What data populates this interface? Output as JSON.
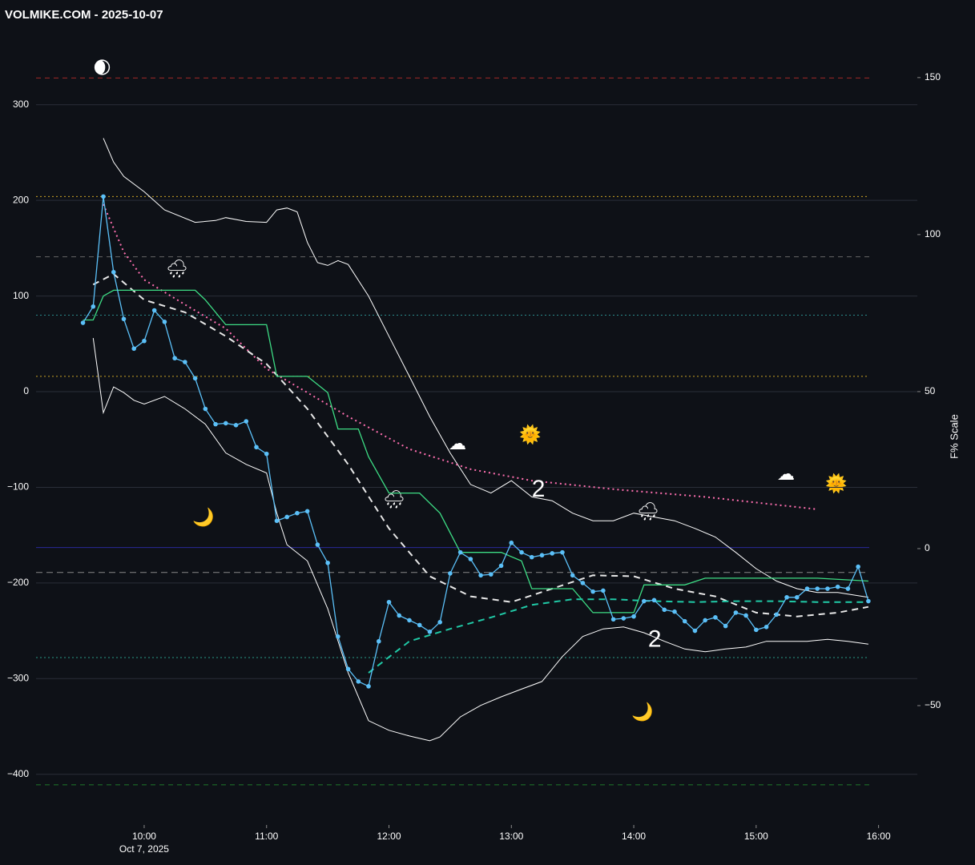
{
  "chart_data": {
    "type": "line",
    "title": "VOLMIKE.COM  - 2025-10-07",
    "date_label": "Oct 7, 2025",
    "y2_label": "F% Scale",
    "xlim": [
      "09:07",
      "16:19"
    ],
    "xticks": [
      "10:00",
      "11:00",
      "12:00",
      "13:00",
      "14:00",
      "15:00",
      "16:00"
    ],
    "ylim": [
      -453,
      376
    ],
    "yticks": [
      {
        "value": -400,
        "label": "−400"
      },
      {
        "value": -300,
        "label": "−300"
      },
      {
        "value": -200,
        "label": "−200"
      },
      {
        "value": -100,
        "label": "−100"
      },
      0,
      100,
      200,
      300
    ],
    "y2lim": [
      -88,
      164.5
    ],
    "y2ticks": [
      {
        "value": -50,
        "label": "−50"
      },
      0,
      50,
      100,
      150
    ],
    "grid": true,
    "hlines": [
      {
        "y": 328,
        "color": "#a02828",
        "dash": "6,5"
      },
      {
        "y": 141,
        "color": "#666666",
        "dash": "6,5"
      },
      {
        "y": 80,
        "color": "#2a8a8a",
        "dash": "2,3"
      },
      {
        "y": 204,
        "color": "#c9a227",
        "dash": "2,3"
      },
      {
        "y": 16,
        "color": "#c9a227",
        "dash": "2,3"
      },
      {
        "y": -163,
        "color": "#2a2a9a",
        "dash": "none"
      },
      {
        "y": -189,
        "color": "#888888",
        "dash": "8,5"
      },
      {
        "y": -278,
        "color": "#2a9a8a",
        "dash": "2,3"
      },
      {
        "y": -411,
        "color": "#1f7a2a",
        "dash": "6,5"
      }
    ],
    "series": [
      {
        "color": "#ffffff",
        "width": 1,
        "dash": "none",
        "markers": false,
        "x": [
          "09:40",
          "09:45",
          "09:50",
          "10:00",
          "10:10",
          "10:25",
          "10:35",
          "10:40",
          "10:50",
          "11:00",
          "11:05",
          "11:10",
          "11:15",
          "11:20",
          "11:25",
          "11:30",
          "11:35",
          "11:40",
          "11:50",
          "12:00",
          "12:10",
          "12:20",
          "12:30",
          "12:40",
          "12:50",
          "13:00",
          "13:10",
          "13:20",
          "13:30",
          "13:40",
          "13:50",
          "14:00",
          "14:10",
          "14:20",
          "14:30",
          "14:40",
          "14:50",
          "15:00",
          "15:10",
          "15:20",
          "15:30",
          "15:40",
          "15:55"
        ],
        "values": [
          265,
          240,
          225,
          209,
          190,
          177,
          179,
          182,
          178,
          177,
          190,
          192,
          188,
          156,
          135,
          132,
          137,
          133,
          100,
          58,
          16,
          -26,
          -64,
          -97,
          -106,
          -93,
          -110,
          -114,
          -127,
          -135,
          -135,
          -127,
          -131,
          -135,
          -143,
          -152,
          -168,
          -185,
          -198,
          -206,
          -210,
          -210,
          -215
        ]
      },
      {
        "color": "#ffffff",
        "width": 1,
        "dash": "none",
        "markers": false,
        "x": [
          "09:35",
          "09:40",
          "09:45",
          "09:50",
          "09:55",
          "10:00",
          "10:10",
          "10:20",
          "10:30",
          "10:40",
          "10:50",
          "11:00",
          "11:05",
          "11:10",
          "11:20",
          "11:30",
          "11:40",
          "11:50",
          "12:00",
          "12:10",
          "12:20",
          "12:25",
          "12:35",
          "12:45",
          "12:55",
          "13:05",
          "13:15",
          "13:25",
          "13:35",
          "13:45",
          "13:55",
          "14:05",
          "14:15",
          "14:25",
          "14:35",
          "14:45",
          "14:55",
          "15:05",
          "15:15",
          "15:25",
          "15:35",
          "15:45",
          "15:55"
        ],
        "values": [
          56,
          -22,
          5,
          -1,
          -9,
          -13,
          -5,
          -18,
          -34,
          -64,
          -76,
          -85,
          -127,
          -160,
          -177,
          -227,
          -294,
          -344,
          -354,
          -360,
          -365,
          -361,
          -340,
          -328,
          -319,
          -311,
          -303,
          -277,
          -256,
          -248,
          -246,
          -252,
          -261,
          -269,
          -272,
          -269,
          -267,
          -261,
          -261,
          -261,
          -259,
          -261,
          -264
        ]
      },
      {
        "color": "#ff6fb0",
        "width": 2,
        "dash": "2,4",
        "markers": false,
        "x": [
          "09:40",
          "09:50",
          "10:00",
          "10:20",
          "10:40",
          "11:00",
          "11:20",
          "11:40",
          "12:10",
          "12:40",
          "13:10",
          "13:50",
          "14:35",
          "15:30"
        ],
        "values": [
          196,
          146,
          117,
          91,
          66,
          24,
          -1,
          -26,
          -60,
          -81,
          -93,
          -102,
          -110,
          -123
        ]
      },
      {
        "color": "#e8e8e8",
        "width": 2,
        "dash": "8,6",
        "markers": false,
        "x": [
          "09:35",
          "09:45",
          "10:00",
          "10:20",
          "10:40",
          "11:00",
          "11:20",
          "11:40",
          "12:00",
          "12:20",
          "12:40",
          "13:00",
          "13:20",
          "13:40",
          "14:00",
          "14:20",
          "14:40",
          "15:00",
          "15:20",
          "15:40",
          "15:55"
        ],
        "values": [
          112,
          123,
          96,
          83,
          58,
          29,
          -18,
          -76,
          -143,
          -193,
          -214,
          -220,
          -206,
          -192,
          -193,
          -206,
          -214,
          -231,
          -235,
          -231,
          -225
        ]
      },
      {
        "color": "#3ddc84",
        "width": 1.3,
        "dash": "none",
        "markers": false,
        "x": [
          "09:30",
          "09:35",
          "09:40",
          "09:45",
          "10:00",
          "10:25",
          "10:30",
          "10:40",
          "11:00",
          "11:05",
          "11:20",
          "11:30",
          "11:35",
          "11:45",
          "11:50",
          "12:00",
          "12:15",
          "12:25",
          "12:35",
          "12:55",
          "13:05",
          "13:10",
          "13:30",
          "13:40",
          "14:00",
          "14:05",
          "14:25",
          "14:35",
          "15:30",
          "15:55"
        ],
        "values": [
          75,
          75,
          100,
          106,
          106,
          106,
          96,
          70,
          70,
          16,
          16,
          -1,
          -39,
          -39,
          -68,
          -106,
          -106,
          -127,
          -168,
          -168,
          -177,
          -206,
          -206,
          -231,
          -231,
          -202,
          -202,
          -195,
          -195,
          -198
        ]
      },
      {
        "color": "#20c9a6",
        "width": 2,
        "dash": "8,6",
        "markers": false,
        "x": [
          "11:50",
          "12:10",
          "12:30",
          "12:50",
          "13:10",
          "13:30",
          "13:50",
          "14:10",
          "14:30",
          "14:50",
          "15:10",
          "15:30",
          "15:55"
        ],
        "values": [
          -294,
          -261,
          -248,
          -236,
          -223,
          -217,
          -217,
          -219,
          -220,
          -219,
          -219,
          -220,
          -220
        ]
      },
      {
        "color": "#5bc0f8",
        "width": 1.3,
        "dash": "none",
        "markers": true,
        "x": [
          "09:30",
          "09:35",
          "09:40",
          "09:45",
          "09:50",
          "09:55",
          "10:00",
          "10:05",
          "10:10",
          "10:15",
          "10:20",
          "10:25",
          "10:30",
          "10:35",
          "10:40",
          "10:45",
          "10:50",
          "10:55",
          "11:00",
          "11:05",
          "11:10",
          "11:15",
          "11:20",
          "11:25",
          "11:30",
          "11:35",
          "11:40",
          "11:45",
          "11:50",
          "11:55",
          "12:00",
          "12:05",
          "12:10",
          "12:15",
          "12:20",
          "12:25",
          "12:30",
          "12:35",
          "12:40",
          "12:45",
          "12:50",
          "12:55",
          "13:00",
          "13:05",
          "13:10",
          "13:15",
          "13:20",
          "13:25",
          "13:30",
          "13:35",
          "13:40",
          "13:45",
          "13:50",
          "13:55",
          "14:00",
          "14:05",
          "14:10",
          "14:15",
          "14:20",
          "14:25",
          "14:30",
          "14:35",
          "14:40",
          "14:45",
          "14:50",
          "14:55",
          "15:00",
          "15:05",
          "15:10",
          "15:15",
          "15:20",
          "15:25",
          "15:30",
          "15:35",
          "15:40",
          "15:45",
          "15:50",
          "15:55"
        ],
        "values": [
          72,
          89,
          204,
          125,
          76,
          45,
          53,
          85,
          73,
          35,
          31,
          14,
          -18,
          -34,
          -33,
          -35,
          -31,
          -58,
          -65,
          -135,
          -131,
          -127,
          -125,
          -160,
          -179,
          -256,
          -290,
          -303,
          -308,
          -261,
          -220,
          -234,
          -239,
          -244,
          -251,
          -241,
          -190,
          -168,
          -175,
          -192,
          -191,
          -182,
          -158,
          -168,
          -173,
          -171,
          -169,
          -168,
          -192,
          -200,
          -209,
          -208,
          -238,
          -237,
          -235,
          -219,
          -218,
          -228,
          -230,
          -240,
          -250,
          -239,
          -236,
          -245,
          -231,
          -234,
          -249,
          -246,
          -233,
          -215,
          -215,
          -206,
          -206,
          -206,
          -204,
          -206,
          -183,
          -219
        ]
      }
    ],
    "annotations": [
      {
        "text": "2",
        "x": "13:10",
        "y": -103
      },
      {
        "text": "2",
        "x": "14:07",
        "y": -260
      }
    ]
  }
}
